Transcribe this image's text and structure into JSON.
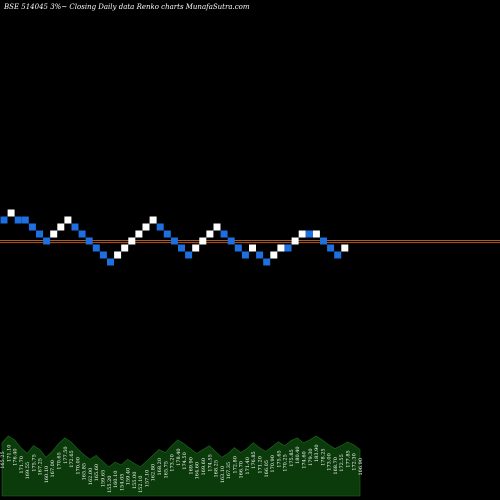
{
  "header": {
    "title": "BSE 514045 3%~   Closing Daily data  Renko  charts MunafaSutra.com"
  },
  "chart_data": {
    "type": "renko",
    "title": "BSE 514045 3%~   Closing Daily data  Renko  charts MunafaSutra.com",
    "brick_size_percent": 3,
    "colors": {
      "up": "#ffffff",
      "down": "#1e6fe0",
      "reference_line": "#b4581e",
      "volume_area": "#0b3a0b",
      "background": "#000000"
    },
    "reference_levels": [
      0,
      -0.6
    ],
    "bricks": [
      {
        "dir": "down",
        "level": 0
      },
      {
        "dir": "up",
        "level": 1
      },
      {
        "dir": "down",
        "level": 0
      },
      {
        "dir": "down",
        "level": 0
      },
      {
        "dir": "down",
        "level": -1
      },
      {
        "dir": "down",
        "level": -2
      },
      {
        "dir": "down",
        "level": -3
      },
      {
        "dir": "up",
        "level": -2
      },
      {
        "dir": "up",
        "level": -1
      },
      {
        "dir": "up",
        "level": 0
      },
      {
        "dir": "down",
        "level": -1
      },
      {
        "dir": "down",
        "level": -2
      },
      {
        "dir": "down",
        "level": -3
      },
      {
        "dir": "down",
        "level": -4
      },
      {
        "dir": "down",
        "level": -5
      },
      {
        "dir": "down",
        "level": -6
      },
      {
        "dir": "up",
        "level": -5
      },
      {
        "dir": "up",
        "level": -4
      },
      {
        "dir": "up",
        "level": -3
      },
      {
        "dir": "up",
        "level": -2
      },
      {
        "dir": "up",
        "level": -1
      },
      {
        "dir": "up",
        "level": 0
      },
      {
        "dir": "down",
        "level": -1
      },
      {
        "dir": "down",
        "level": -2
      },
      {
        "dir": "down",
        "level": -3
      },
      {
        "dir": "down",
        "level": -4
      },
      {
        "dir": "down",
        "level": -5
      },
      {
        "dir": "up",
        "level": -4
      },
      {
        "dir": "up",
        "level": -3
      },
      {
        "dir": "up",
        "level": -2
      },
      {
        "dir": "up",
        "level": -1
      },
      {
        "dir": "down",
        "level": -2
      },
      {
        "dir": "down",
        "level": -3
      },
      {
        "dir": "down",
        "level": -4
      },
      {
        "dir": "down",
        "level": -5
      },
      {
        "dir": "up",
        "level": -4
      },
      {
        "dir": "down",
        "level": -5
      },
      {
        "dir": "down",
        "level": -6
      },
      {
        "dir": "up",
        "level": -5
      },
      {
        "dir": "up",
        "level": -4
      },
      {
        "dir": "down",
        "level": -4
      },
      {
        "dir": "up",
        "level": -3
      },
      {
        "dir": "up",
        "level": -2
      },
      {
        "dir": "down",
        "level": -2
      },
      {
        "dir": "up",
        "level": -2
      },
      {
        "dir": "down",
        "level": -3
      },
      {
        "dir": "down",
        "level": -4
      },
      {
        "dir": "down",
        "level": -5
      },
      {
        "dir": "up",
        "level": -4
      }
    ],
    "volume": {
      "labels": [
        "165.25",
        "171.10",
        "176.40",
        "171.70",
        "169.55",
        "175.75",
        "167.25",
        "160.10",
        "167.00",
        "170.65",
        "177.50",
        "172.65",
        "170.00",
        "165.85",
        "162.00",
        "165.60",
        "159.65",
        "155.20",
        "160.10",
        "154.05",
        "159.40",
        "155.00",
        "152.10",
        "157.10",
        "162.80",
        "168.20",
        "165.75",
        "173.20",
        "178.40",
        "174.50",
        "169.90",
        "164.60",
        "169.60",
        "174.55",
        "168.25",
        "163.10",
        "167.35",
        "172.80",
        "166.70",
        "171.40",
        "176.85",
        "171.20",
        "166.05",
        "170.90",
        "175.65",
        "170.25",
        "175.85",
        "180.40",
        "174.60",
        "179.30",
        "183.90",
        "178.25",
        "173.00",
        "168.70",
        "172.55",
        "177.85",
        "172.30",
        "166.90"
      ],
      "values": [
        55,
        62,
        58,
        50,
        44,
        52,
        48,
        40,
        46,
        54,
        60,
        56,
        49,
        43,
        38,
        42,
        36,
        30,
        35,
        32,
        38,
        34,
        30,
        36,
        42,
        48,
        45,
        52,
        58,
        54,
        49,
        44,
        48,
        52,
        46,
        40,
        44,
        50,
        45,
        49,
        55,
        50,
        46,
        51,
        56,
        52,
        57,
        60,
        55,
        58,
        62,
        58,
        53,
        49,
        52,
        56,
        53,
        48
      ]
    }
  }
}
